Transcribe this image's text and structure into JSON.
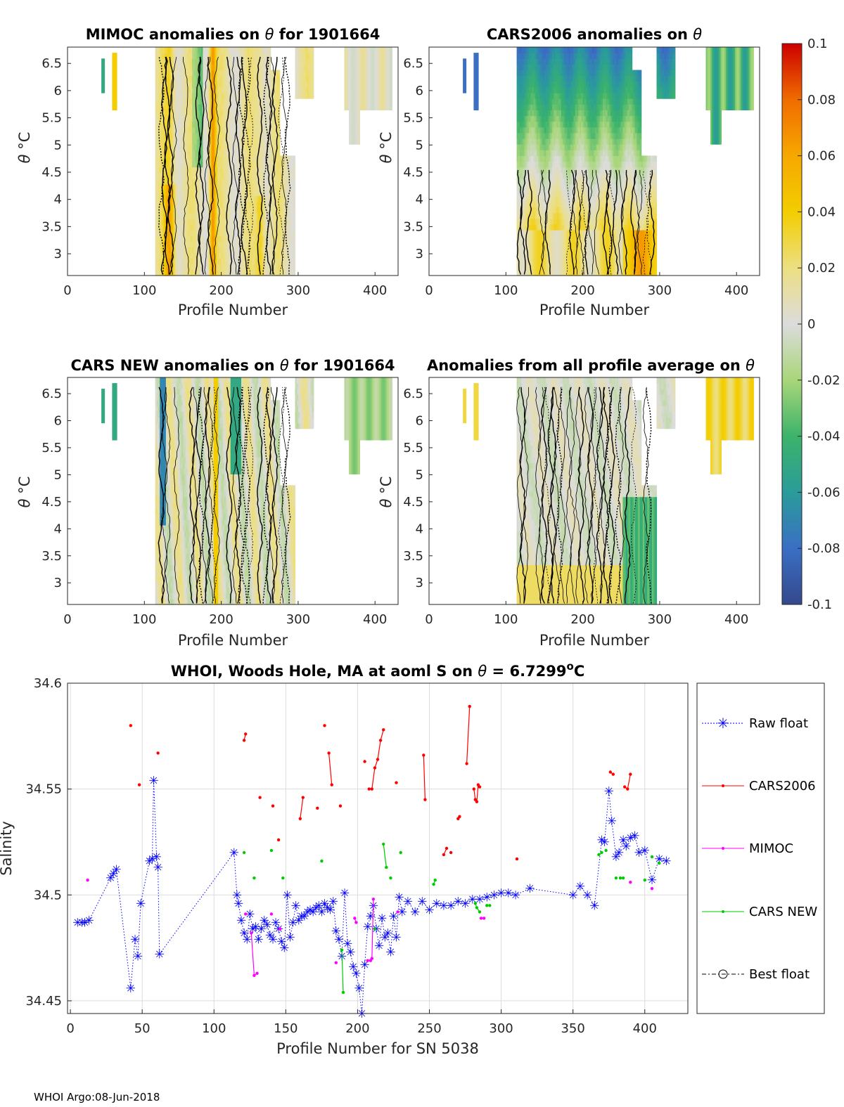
{
  "footer": "WHOI Argo:08-Jun-2018",
  "colorbar": {
    "range": [
      -0.1,
      0.1
    ],
    "ticks": [
      "0.1",
      "0.08",
      "0.06",
      "0.04",
      "0.02",
      "0",
      "-0.02",
      "-0.04",
      "-0.06",
      "-0.08",
      "-0.1"
    ]
  },
  "chart_data": [
    {
      "type": "heatmap",
      "title_prefix": "MIMOC anomalies on ",
      "theta_symbol": "θ",
      "title_suffix": "  for 1901664",
      "xlabel": "Profile Number",
      "ylabel_theta": "θ",
      "ylabel_unit": " °C",
      "xlim": [
        0,
        430
      ],
      "ylim": [
        2.6,
        6.8
      ],
      "xticks": [
        "0",
        "100",
        "200",
        "300",
        "400"
      ],
      "yticks": [
        "6.5",
        "6",
        "5.5",
        "5",
        "4.5",
        "4",
        "3.5",
        "3"
      ],
      "dominant_anomaly": "positive (0.01 to 0.08), max near profiles 130 and 190"
    },
    {
      "type": "heatmap",
      "title_prefix": "CARS2006 anomalies on ",
      "theta_symbol": "θ",
      "title_suffix": "",
      "xlabel": "Profile Number",
      "ylabel_theta": "θ",
      "ylabel_unit": " °C",
      "xlim": [
        0,
        430
      ],
      "ylim": [
        2.6,
        6.8
      ],
      "xticks": [
        "0",
        "100",
        "200",
        "300",
        "400"
      ],
      "yticks": [
        "6.5",
        "6",
        "5.5",
        "5",
        "4.5",
        "4",
        "3.5",
        "3"
      ],
      "dominant_anomaly": "negative (-0.08 to -0.04) above 4.5 °C, positive below 3.5 °C"
    },
    {
      "type": "heatmap",
      "title_prefix": "CARS NEW anomalies on ",
      "theta_symbol": "θ",
      "title_suffix": " for 1901664",
      "xlabel": "Profile Number",
      "ylabel_theta": "θ",
      "ylabel_unit": " °C",
      "xlim": [
        0,
        430
      ],
      "ylim": [
        2.6,
        6.8
      ],
      "xticks": [
        "0",
        "100",
        "200",
        "300",
        "400"
      ],
      "yticks": [
        "6.5",
        "6",
        "5.5",
        "5",
        "4.5",
        "4",
        "3.5",
        "3"
      ],
      "dominant_anomaly": "mixed, mostly near zero to slightly positive"
    },
    {
      "type": "heatmap",
      "title_prefix": "Anomalies from all profile average on ",
      "theta_symbol": "θ",
      "title_suffix": "",
      "xlabel": "Profile Number",
      "ylabel_theta": "θ",
      "ylabel_unit": " °C",
      "xlim": [
        0,
        430
      ],
      "ylim": [
        2.6,
        6.8
      ],
      "xticks": [
        "0",
        "100",
        "200",
        "300",
        "400"
      ],
      "yticks": [
        "6.5",
        "6",
        "5.5",
        "5",
        "4.5",
        "4",
        "3.5",
        "3"
      ],
      "dominant_anomaly": "near zero, slightly positive at depth, positive 0.02-0.05 for profiles 370-420"
    },
    {
      "type": "line",
      "title_prefix": "WHOI, Woods Hole, MA at aoml S on ",
      "theta_symbol": "θ",
      "title_value": " = 6.7299",
      "title_unit_sup": "o",
      "title_unit": "C",
      "xlabel": "Profile Number for SN 5038",
      "ylabel": "Salinity",
      "xlim": [
        -2,
        430
      ],
      "ylim": [
        34.444,
        34.6
      ],
      "xticks": [
        0,
        50,
        100,
        150,
        200,
        250,
        300,
        350,
        400
      ],
      "yticks": [
        34.6,
        34.55,
        34.5,
        34.45
      ],
      "ytick_labels": [
        "34.6",
        "34.55",
        "34.5",
        "34.45"
      ],
      "grid": true,
      "legend": [
        "Raw float",
        "CARS2006",
        "MIMOC",
        "CARS NEW",
        "Best float"
      ],
      "legend_placement": "outside right",
      "series": [
        {
          "name": "Raw float",
          "color": "#0000ff",
          "x": [
            5,
            8,
            10,
            13,
            28,
            30,
            32,
            42,
            45,
            47,
            49,
            55,
            57,
            58,
            60,
            61,
            62,
            114,
            116,
            117,
            119,
            121,
            123,
            125,
            127,
            129,
            131,
            133,
            135,
            137,
            139,
            141,
            143,
            145,
            147,
            149,
            151,
            153,
            155,
            157,
            159,
            161,
            163,
            165,
            167,
            169,
            171,
            173,
            175,
            177,
            179,
            181,
            183,
            185,
            187,
            189,
            191,
            193,
            195,
            197,
            199,
            201,
            203,
            205,
            207,
            209,
            211,
            213,
            215,
            217,
            219,
            221,
            223,
            225,
            227,
            229,
            231,
            235,
            240,
            245,
            250,
            255,
            260,
            265,
            270,
            275,
            280,
            285,
            290,
            295,
            300,
            305,
            310,
            320,
            350,
            355,
            360,
            365,
            370,
            372,
            375,
            377,
            380,
            382,
            385,
            387,
            390,
            393,
            396,
            400,
            405,
            410,
            415
          ],
          "y": [
            34.487,
            34.487,
            34.487,
            34.488,
            34.508,
            34.51,
            34.512,
            34.456,
            34.479,
            34.471,
            34.496,
            34.516,
            34.517,
            34.554,
            34.518,
            34.513,
            34.472,
            34.52,
            34.5,
            34.496,
            34.488,
            34.482,
            34.479,
            34.491,
            34.484,
            34.485,
            34.479,
            34.484,
            34.488,
            34.486,
            34.481,
            34.479,
            34.487,
            34.484,
            34.478,
            34.475,
            34.5,
            34.48,
            34.487,
            34.495,
            34.488,
            34.49,
            34.49,
            34.492,
            34.493,
            34.492,
            34.494,
            34.495,
            34.492,
            34.496,
            34.494,
            34.493,
            34.497,
            34.483,
            34.479,
            34.471,
            34.501,
            34.477,
            34.473,
            34.466,
            34.463,
            34.456,
            34.444,
            34.467,
            34.485,
            34.49,
            34.495,
            34.484,
            34.476,
            34.489,
            34.48,
            34.482,
            34.473,
            34.49,
            34.48,
            34.499,
            34.492,
            34.497,
            34.492,
            34.497,
            34.493,
            34.496,
            34.495,
            34.495,
            34.497,
            34.496,
            34.498,
            34.498,
            34.499,
            34.5,
            34.501,
            34.501,
            34.5,
            34.503,
            34.5,
            34.504,
            34.5,
            34.495,
            34.526,
            34.525,
            34.549,
            34.535,
            34.518,
            34.52,
            34.526,
            34.523,
            34.527,
            34.528,
            34.52,
            34.521,
            34.507,
            34.517,
            34.516
          ]
        },
        {
          "name": "CARS2006",
          "color": "#ff0000",
          "x": [
            42,
            48,
            61,
            121,
            122,
            132,
            141,
            145,
            160,
            162,
            172,
            177,
            180,
            182,
            188,
            205,
            208,
            210,
            212,
            214,
            216,
            218,
            227,
            246,
            247,
            260,
            262,
            265,
            270,
            271,
            276,
            278,
            281,
            282,
            283,
            284,
            285,
            311,
            376,
            378,
            386,
            388,
            390
          ],
          "y": [
            34.58,
            34.552,
            34.567,
            34.573,
            34.576,
            34.546,
            34.542,
            34.526,
            34.536,
            34.546,
            34.541,
            34.58,
            34.567,
            34.552,
            34.542,
            34.563,
            34.55,
            34.55,
            34.56,
            34.564,
            34.573,
            34.578,
            34.553,
            34.566,
            34.545,
            34.519,
            34.522,
            34.52,
            34.536,
            34.537,
            34.562,
            34.589,
            34.55,
            34.545,
            34.544,
            34.552,
            34.551,
            34.517,
            34.558,
            34.557,
            34.551,
            34.55,
            34.557
          ]
        },
        {
          "name": "MIMOC",
          "color": "#ff00ff",
          "x": [
            12,
            122,
            126,
            128,
            130,
            140,
            146,
            185,
            198,
            199,
            207,
            209,
            210,
            211,
            228,
            286,
            288,
            390,
            405
          ],
          "y": [
            34.507,
            34.491,
            34.482,
            34.462,
            34.463,
            34.491,
            34.484,
            34.468,
            34.489,
            34.487,
            34.469,
            34.469,
            34.47,
            34.498,
            34.492,
            34.489,
            34.489,
            34.506,
            34.503
          ]
        },
        {
          "name": "CARS NEW",
          "color": "#00cc00",
          "x": [
            121,
            128,
            140,
            148,
            175,
            189,
            190,
            212,
            218,
            220,
            223,
            230,
            253,
            254,
            282,
            283,
            285,
            290,
            292,
            368,
            370,
            373,
            380,
            383,
            385,
            400,
            405,
            410
          ],
          "y": [
            34.52,
            34.508,
            34.521,
            34.508,
            34.516,
            34.474,
            34.454,
            34.484,
            34.524,
            34.513,
            34.508,
            34.52,
            34.505,
            34.507,
            34.496,
            34.494,
            34.492,
            34.495,
            34.495,
            34.519,
            34.52,
            34.521,
            34.508,
            34.508,
            34.508,
            34.507,
            34.518,
            34.515
          ]
        },
        {
          "name": "Best float",
          "color": "#000000",
          "x": [],
          "y": []
        }
      ]
    }
  ]
}
